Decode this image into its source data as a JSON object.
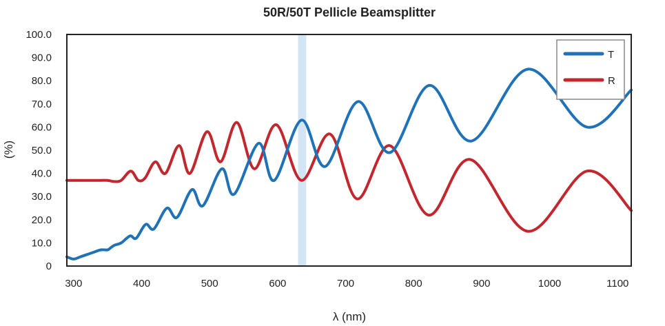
{
  "chart_data": {
    "type": "line",
    "title": "50R/50T Pellicle Beamsplitter",
    "xlabel": "λ (nm)",
    "ylabel": "(%)",
    "xlim": [
      290,
      1120
    ],
    "ylim": [
      0,
      100
    ],
    "x_ticks": [
      300,
      400,
      500,
      600,
      700,
      800,
      900,
      1000,
      1100
    ],
    "x_tick_labels": [
      "300",
      "400",
      "500",
      "600",
      "700",
      "800",
      "900",
      "1000",
      "1100"
    ],
    "y_ticks": [
      0,
      10,
      20,
      30,
      40,
      50,
      60,
      70,
      80,
      90,
      100
    ],
    "y_tick_labels": [
      "0",
      "10.0",
      "20.0",
      "30.0",
      "40.0",
      "50.0",
      "60.0",
      "70.0",
      "80.0",
      "90.0",
      "100.0"
    ],
    "highlight_band": {
      "x_range": [
        630,
        642
      ],
      "color": "#d3e5f5"
    },
    "grid": false,
    "legend": {
      "position": "top-right"
    },
    "series": [
      {
        "name": "T",
        "color": "#1f72b8",
        "points": [
          [
            290,
            4
          ],
          [
            300,
            3
          ],
          [
            310,
            4
          ],
          [
            320,
            5
          ],
          [
            330,
            6
          ],
          [
            340,
            7
          ],
          [
            350,
            7
          ],
          [
            355,
            8
          ],
          [
            360,
            9
          ],
          [
            370,
            10
          ],
          [
            383,
            13
          ],
          [
            392,
            12
          ],
          [
            406,
            18
          ],
          [
            418,
            16
          ],
          [
            437,
            25
          ],
          [
            452,
            21
          ],
          [
            474,
            33
          ],
          [
            490,
            26
          ],
          [
            518,
            42
          ],
          [
            536,
            31
          ],
          [
            572,
            53
          ],
          [
            595,
            37
          ],
          [
            635,
            63
          ],
          [
            670,
            43
          ],
          [
            718,
            71
          ],
          [
            765,
            49
          ],
          [
            823,
            78
          ],
          [
            885,
            54
          ],
          [
            968,
            85
          ],
          [
            1055,
            60
          ],
          [
            1120,
            76
          ]
        ]
      },
      {
        "name": "R",
        "color": "#c2272d",
        "points": [
          [
            290,
            37
          ],
          [
            300,
            37
          ],
          [
            310,
            37
          ],
          [
            320,
            37
          ],
          [
            330,
            37
          ],
          [
            340,
            37
          ],
          [
            350,
            37
          ],
          [
            360,
            36.5
          ],
          [
            370,
            37
          ],
          [
            384,
            41
          ],
          [
            395,
            37
          ],
          [
            405,
            38
          ],
          [
            420,
            45
          ],
          [
            435,
            40
          ],
          [
            455,
            52
          ],
          [
            471,
            40
          ],
          [
            496,
            58
          ],
          [
            516,
            45
          ],
          [
            540,
            62
          ],
          [
            566,
            42
          ],
          [
            598,
            61
          ],
          [
            635,
            37
          ],
          [
            677,
            57
          ],
          [
            717,
            29
          ],
          [
            765,
            52
          ],
          [
            822,
            22
          ],
          [
            883,
            46
          ],
          [
            968,
            15
          ],
          [
            1055,
            41
          ],
          [
            1120,
            24
          ]
        ]
      }
    ]
  }
}
